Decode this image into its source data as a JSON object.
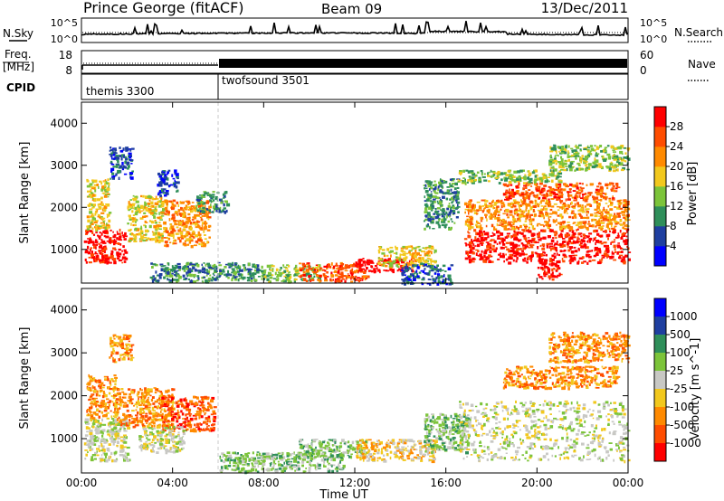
{
  "header": {
    "station": "Prince George (fitACF)",
    "beam": "Beam 09",
    "date": "13/Dec/2011"
  },
  "noise_panel": {
    "left_label": "N.Sky",
    "right_label": "N.Search",
    "left_ticks": [
      "10^5",
      "10^0"
    ],
    "right_ticks": [
      "10^5",
      "10^0"
    ]
  },
  "freq_panel": {
    "left_label_line1": "Freq.",
    "left_label_line2": "[MHz]",
    "left_ticks": [
      "18",
      "8"
    ],
    "right_label": "Nave",
    "right_ticks": [
      "60",
      "0"
    ]
  },
  "cpid_panel": {
    "label": "CPID",
    "segments": [
      {
        "name": "themis 3300",
        "start_hour": 0
      },
      {
        "name": "twofsound 3501",
        "start_hour": 6
      }
    ]
  },
  "colors": {
    "frame": "#000000",
    "ground_scatter": "#c8c8c4",
    "divider": "#c8c8c8"
  },
  "chart_data": [
    {
      "type": "heatmap",
      "title": "",
      "xlabel": "",
      "ylabel": "Slant Range [km]",
      "xlim": [
        0,
        24
      ],
      "ylim": [
        200,
        4500
      ],
      "x_ticks": [
        0,
        4,
        8,
        12,
        16,
        20,
        24
      ],
      "y_ticks": [
        "1000",
        "2000",
        "3000",
        "4000"
      ],
      "colorbar": {
        "label": "Power [dB]",
        "levels": [
          "4",
          "8",
          "12",
          "16",
          "20",
          "24",
          "28"
        ],
        "colors": [
          "#0000ff",
          "#1f3fa0",
          "#2f8f5a",
          "#7cc43a",
          "#f2c81d",
          "#ff8a00",
          "#ff4d00",
          "#ff0000"
        ]
      },
      "scatter_regions": [
        {
          "x": [
            0.1,
            1.9
          ],
          "y": [
            700,
            1500
          ],
          "level": 7
        },
        {
          "x": [
            0.2,
            1.2
          ],
          "y": [
            1500,
            2700
          ],
          "level": 4
        },
        {
          "x": [
            1.2,
            2.2
          ],
          "y": [
            2700,
            3450
          ],
          "level": 1
        },
        {
          "x": [
            2.0,
            3.6
          ],
          "y": [
            1200,
            2300
          ],
          "level": 4
        },
        {
          "x": [
            3.6,
            5.6
          ],
          "y": [
            1100,
            2200
          ],
          "level": 5
        },
        {
          "x": [
            3.3,
            4.2
          ],
          "y": [
            2300,
            2900
          ],
          "level": 1
        },
        {
          "x": [
            5.0,
            6.4
          ],
          "y": [
            1900,
            2400
          ],
          "level": 2
        },
        {
          "x": [
            3.0,
            8.0
          ],
          "y": [
            250,
            700
          ],
          "level": 2
        },
        {
          "x": [
            8.0,
            10.5
          ],
          "y": [
            250,
            650
          ],
          "level": 3
        },
        {
          "x": [
            9.5,
            12.5
          ],
          "y": [
            250,
            700
          ],
          "level": 6
        },
        {
          "x": [
            12.0,
            14.5
          ],
          "y": [
            500,
            800
          ],
          "level": 8
        },
        {
          "x": [
            13.0,
            15.5
          ],
          "y": [
            600,
            1100
          ],
          "level": 4
        },
        {
          "x": [
            14.0,
            16.2
          ],
          "y": [
            200,
            700
          ],
          "level": 1
        },
        {
          "x": [
            15.0,
            16.5
          ],
          "y": [
            1500,
            2700
          ],
          "level": 2
        },
        {
          "x": [
            16.8,
            24.0
          ],
          "y": [
            700,
            1500
          ],
          "level": 7
        },
        {
          "x": [
            16.8,
            24.0
          ],
          "y": [
            1500,
            2200
          ],
          "level": 5
        },
        {
          "x": [
            18.5,
            23.5
          ],
          "y": [
            2200,
            2600
          ],
          "level": 6
        },
        {
          "x": [
            16.5,
            21.0
          ],
          "y": [
            2600,
            2900
          ],
          "level": 3
        },
        {
          "x": [
            20.5,
            24.0
          ],
          "y": [
            2900,
            3500
          ],
          "level": 3
        },
        {
          "x": [
            20.0,
            21.0
          ],
          "y": [
            300,
            800
          ],
          "level": 7
        }
      ]
    },
    {
      "type": "heatmap",
      "title": "",
      "xlabel": "Time UT",
      "ylabel": "Slant Range [km]",
      "xlim": [
        0,
        24
      ],
      "ylim": [
        200,
        4500
      ],
      "x_ticks": [
        0,
        4,
        8,
        12,
        16,
        20,
        24
      ],
      "x_tick_labels": [
        "00:00",
        "04:00",
        "08:00",
        "12:00",
        "16:00",
        "20:00",
        "00:00"
      ],
      "y_ticks": [
        "1000",
        "2000",
        "3000",
        "4000"
      ],
      "colorbar": {
        "label": "Velocity [m s^-1]",
        "levels": [
          "1000",
          "500",
          "100",
          "25",
          "-25",
          "-100",
          "-500",
          "-1000"
        ],
        "colors": [
          "#0000ff",
          "#1f3fa0",
          "#2f8f5a",
          "#7cc43a",
          "#c8c8c4",
          "#f2c81d",
          "#ff8a00",
          "#ff4d00",
          "#ff0000"
        ]
      },
      "scatter_regions": [
        {
          "x": [
            0.1,
            2.0
          ],
          "y": [
            500,
            1500
          ],
          "level": 4
        },
        {
          "x": [
            0.2,
            1.5
          ],
          "y": [
            1500,
            2500
          ],
          "level": 6
        },
        {
          "x": [
            1.2,
            2.2
          ],
          "y": [
            2800,
            3450
          ],
          "level": 6
        },
        {
          "x": [
            1.5,
            4.0
          ],
          "y": [
            1300,
            2200
          ],
          "level": 6
        },
        {
          "x": [
            3.5,
            5.8
          ],
          "y": [
            1200,
            2000
          ],
          "level": 7
        },
        {
          "x": [
            2.5,
            4.5
          ],
          "y": [
            700,
            1300
          ],
          "level": 4
        },
        {
          "x": [
            6.0,
            11.5
          ],
          "y": [
            250,
            700
          ],
          "level": 3
        },
        {
          "x": [
            9.5,
            12.5
          ],
          "y": [
            600,
            1000
          ],
          "level": 3
        },
        {
          "x": [
            12.0,
            15.5
          ],
          "y": [
            500,
            1000
          ],
          "level": 5
        },
        {
          "x": [
            15.0,
            17.0
          ],
          "y": [
            700,
            1600
          ],
          "level": 3
        },
        {
          "x": [
            16.5,
            24.0
          ],
          "y": [
            500,
            1900
          ],
          "level": 4
        },
        {
          "x": [
            18.5,
            23.5
          ],
          "y": [
            2200,
            2700
          ],
          "level": 6
        },
        {
          "x": [
            20.5,
            24.0
          ],
          "y": [
            2800,
            3500
          ],
          "level": 6
        }
      ]
    }
  ]
}
